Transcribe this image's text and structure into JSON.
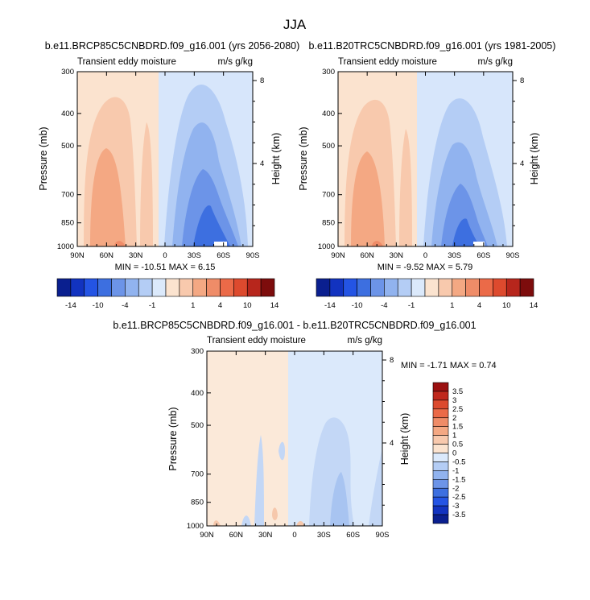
{
  "figure": {
    "title": "JJA"
  },
  "colors": {
    "deep_blue": "#0a1f8f",
    "mid_blue": "#3a6fe0",
    "light_blue": "#c8dcf8",
    "lightest_blue": "#dbe9fb",
    "peach": "#fbe3cf",
    "salmon": "#f5b495",
    "orange_red": "#eb7b5a",
    "dark_red": "#7d0c0c"
  },
  "chart_data": [
    {
      "id": "panel1",
      "type": "contour",
      "title": "b.e11.BRCP85C5CNBDRD.f09_g16.001 (yrs 2056-2080)",
      "left_label": "Transient eddy moisture",
      "right_label": "m/s g/kg",
      "ylabel": "Pressure (mb)",
      "y2label": "Height (km)",
      "x_ticks": [
        "90N",
        "60N",
        "30N",
        "0",
        "30S",
        "60S",
        "90S"
      ],
      "x_values": [
        90,
        60,
        30,
        0,
        -30,
        -60,
        -90
      ],
      "y_ticks": [
        300,
        400,
        500,
        700,
        850,
        1000
      ],
      "y2_ticks": [
        8,
        4
      ],
      "stats": "MIN = -10.51  MAX =  6.15",
      "colorbar_labels": [
        "-14",
        "-10",
        "-4",
        "-1",
        "1",
        "4",
        "10",
        "14"
      ]
    },
    {
      "id": "panel2",
      "type": "contour",
      "title": "b.e11.B20TRC5CNBDRD.f09_g16.001 (yrs 1981-2005)",
      "left_label": "Transient eddy moisture",
      "right_label": "m/s g/kg",
      "ylabel": "Pressure (mb)",
      "y2label": "Height (km)",
      "x_ticks": [
        "90N",
        "60N",
        "30N",
        "0",
        "30S",
        "60S",
        "90S"
      ],
      "x_values": [
        90,
        60,
        30,
        0,
        -30,
        -60,
        -90
      ],
      "y_ticks": [
        300,
        400,
        500,
        700,
        850,
        1000
      ],
      "y2_ticks": [
        8,
        4
      ],
      "stats": "MIN = -9.52  MAX =  5.79",
      "colorbar_labels": [
        "-14",
        "-10",
        "-4",
        "-1",
        "1",
        "4",
        "10",
        "14"
      ]
    },
    {
      "id": "panel3",
      "type": "contour",
      "title": "b.e11.BRCP85C5CNBDRD.f09_g16.001 - b.e11.B20TRC5CNBDRD.f09_g16.001",
      "left_label": "Transient eddy moisture",
      "right_label": "m/s g/kg",
      "ylabel": "Pressure (mb)",
      "y2label": "Height (km)",
      "x_ticks": [
        "90N",
        "60N",
        "30N",
        "0",
        "30S",
        "60S",
        "90S"
      ],
      "x_values": [
        90,
        60,
        30,
        0,
        -30,
        -60,
        -90
      ],
      "y_ticks": [
        300,
        400,
        500,
        700,
        850,
        1000
      ],
      "y2_ticks": [
        8,
        4
      ],
      "stats": "MIN = -1.71  MAX =   0.74",
      "colorbar_labels": [
        "3.5",
        "3",
        "2.5",
        "2",
        "1.5",
        "1",
        "0.5",
        "0",
        "-0.5",
        "-1",
        "-1.5",
        "-2",
        "-2.5",
        "-3",
        "-3.5"
      ]
    }
  ]
}
